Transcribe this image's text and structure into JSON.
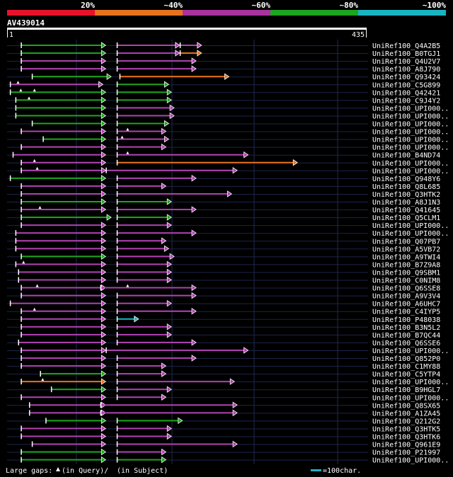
{
  "query": {
    "id": "AV439014",
    "start": "1",
    "end": "435",
    "length": 435
  },
  "identity_scale": [
    {
      "label": "20%",
      "color": "#e8112b"
    },
    {
      "label": "~40%",
      "color": "#e8731c"
    },
    {
      "label": "~60%",
      "color": "#a8329e"
    },
    {
      "label": "~80%",
      "color": "#1ea51e"
    },
    {
      "label": "~100%",
      "color": "#18b4c2"
    }
  ],
  "colors": {
    "green": "#1ea51e",
    "magenta": "#b042b0",
    "orange": "#e8731c",
    "cyan": "#18b4c2",
    "grid": "#202a55",
    "rowline": "#1c2448"
  },
  "hits": [
    {
      "name": "UniRef100_Q4A2B5",
      "segments": [
        [
          5,
          36,
          "green"
        ],
        [
          40,
          63,
          "magenta"
        ],
        [
          63,
          71,
          "magenta"
        ]
      ],
      "gaps": []
    },
    {
      "name": "UniRef100_B0TGJ1",
      "segments": [
        [
          5,
          36,
          "green"
        ],
        [
          40,
          63,
          "magenta"
        ],
        [
          63,
          71,
          "orange"
        ]
      ],
      "gaps": []
    },
    {
      "name": "UniRef100_Q4U2V7",
      "segments": [
        [
          5,
          36,
          "magenta"
        ],
        [
          40,
          69,
          "magenta"
        ]
      ],
      "gaps": []
    },
    {
      "name": "UniRef100_A8J790",
      "segments": [
        [
          5,
          36,
          "magenta"
        ],
        [
          40,
          69,
          "magenta"
        ]
      ],
      "gaps": []
    },
    {
      "name": "UniRef100_Q93424",
      "segments": [
        [
          9,
          38,
          "green"
        ],
        [
          41,
          81,
          "orange"
        ]
      ],
      "gaps": []
    },
    {
      "name": "UniRef100_C5G899",
      "segments": [
        [
          1,
          35,
          "magenta"
        ],
        [
          40,
          59,
          "green"
        ]
      ],
      "gaps": [
        4
      ]
    },
    {
      "name": "UniRef100_Q42421",
      "segments": [
        [
          1,
          36,
          "green"
        ],
        [
          40,
          60,
          "green"
        ]
      ],
      "gaps": [
        5,
        10
      ]
    },
    {
      "name": "UniRef100_C9J4Y2",
      "segments": [
        [
          3,
          36,
          "green"
        ],
        [
          40,
          60,
          "green"
        ]
      ],
      "gaps": [
        8
      ]
    },
    {
      "name": "UniRef100_UPI000..",
      "segments": [
        [
          3,
          36,
          "green"
        ],
        [
          40,
          61,
          "magenta"
        ]
      ],
      "gaps": []
    },
    {
      "name": "UniRef100_UPI000..",
      "segments": [
        [
          3,
          36,
          "green"
        ],
        [
          40,
          61,
          "magenta"
        ]
      ],
      "gaps": []
    },
    {
      "name": "UniRef100_UPI000..",
      "segments": [
        [
          9,
          36,
          "green"
        ],
        [
          40,
          59,
          "green"
        ]
      ],
      "gaps": []
    },
    {
      "name": "UniRef100_UPI000..",
      "segments": [
        [
          5,
          36,
          "magenta"
        ],
        [
          40,
          58,
          "magenta"
        ]
      ],
      "gaps": [
        44
      ]
    },
    {
      "name": "UniRef100_UPI000..",
      "segments": [
        [
          13,
          36,
          "green"
        ],
        [
          40,
          59,
          "magenta"
        ]
      ],
      "gaps": [
        42
      ]
    },
    {
      "name": "UniRef100_UPI000..",
      "segments": [
        [
          5,
          36,
          "magenta"
        ],
        [
          40,
          58,
          "magenta"
        ]
      ],
      "gaps": []
    },
    {
      "name": "UniRef100_B4ND74",
      "segments": [
        [
          2,
          36,
          "magenta"
        ],
        [
          40,
          88,
          "magenta"
        ]
      ],
      "gaps": [
        44
      ]
    },
    {
      "name": "UniRef100_UPI000..",
      "segments": [
        [
          5,
          36,
          "magenta"
        ],
        [
          40,
          106,
          "orange"
        ]
      ],
      "gaps": [
        10
      ]
    },
    {
      "name": "UniRef100_UPI000..",
      "segments": [
        [
          5,
          36,
          "magenta"
        ],
        [
          36,
          84,
          "magenta"
        ]
      ],
      "gaps": [
        11
      ]
    },
    {
      "name": "UniRef100_Q948Y6",
      "segments": [
        [
          1,
          36,
          "green"
        ],
        [
          40,
          69,
          "magenta"
        ]
      ],
      "gaps": []
    },
    {
      "name": "UniRef100_Q8L685",
      "segments": [
        [
          5,
          36,
          "magenta"
        ],
        [
          40,
          58,
          "magenta"
        ]
      ],
      "gaps": []
    },
    {
      "name": "UniRef100_Q3HTK2",
      "segments": [
        [
          5,
          36,
          "magenta"
        ],
        [
          40,
          82,
          "magenta"
        ]
      ],
      "gaps": []
    },
    {
      "name": "UniRef100_A8J1N3",
      "segments": [
        [
          5,
          36,
          "green"
        ],
        [
          40,
          60,
          "green"
        ]
      ],
      "gaps": []
    },
    {
      "name": "UniRef100_Q41645",
      "segments": [
        [
          5,
          36,
          "magenta"
        ],
        [
          40,
          69,
          "magenta"
        ]
      ],
      "gaps": [
        12
      ]
    },
    {
      "name": "UniRef100_Q5CLM1",
      "segments": [
        [
          5,
          38,
          "green"
        ],
        [
          40,
          60,
          "green"
        ]
      ],
      "gaps": []
    },
    {
      "name": "UniRef100_UPI000..",
      "segments": [
        [
          5,
          36,
          "magenta"
        ],
        [
          40,
          60,
          "magenta"
        ]
      ],
      "gaps": []
    },
    {
      "name": "UniRef100_UPI000..",
      "segments": [
        [
          3,
          36,
          "magenta"
        ],
        [
          40,
          69,
          "magenta"
        ]
      ],
      "gaps": []
    },
    {
      "name": "UniRef100_Q07PB7",
      "segments": [
        [
          3,
          36,
          "magenta"
        ],
        [
          40,
          58,
          "magenta"
        ]
      ],
      "gaps": []
    },
    {
      "name": "UniRef100_A5VB72",
      "segments": [
        [
          3,
          36,
          "magenta"
        ],
        [
          40,
          59,
          "magenta"
        ]
      ],
      "gaps": []
    },
    {
      "name": "UniRef100_A9TWI4",
      "segments": [
        [
          5,
          36,
          "green"
        ],
        [
          40,
          61,
          "magenta"
        ]
      ],
      "gaps": []
    },
    {
      "name": "UniRef100_B7Z9A8",
      "segments": [
        [
          3,
          36,
          "magenta"
        ],
        [
          40,
          60,
          "magenta"
        ]
      ],
      "gaps": [
        6
      ]
    },
    {
      "name": "UniRef100_Q9SBM1",
      "segments": [
        [
          4,
          36,
          "magenta"
        ],
        [
          40,
          60,
          "magenta"
        ]
      ],
      "gaps": []
    },
    {
      "name": "UniRef100_C0NIM8",
      "segments": [
        [
          4,
          36,
          "magenta"
        ],
        [
          40,
          60,
          "magenta"
        ]
      ],
      "gaps": []
    },
    {
      "name": "UniRef100_Q6SSE8",
      "segments": [
        [
          5,
          36,
          "magenta"
        ],
        [
          34,
          69,
          "magenta"
        ]
      ],
      "gaps": [
        11,
        44
      ]
    },
    {
      "name": "UniRef100_A9V3V4",
      "segments": [
        [
          5,
          36,
          "magenta"
        ],
        [
          40,
          69,
          "magenta"
        ]
      ],
      "gaps": []
    },
    {
      "name": "UniRef100_A6UHC7",
      "segments": [
        [
          1,
          36,
          "magenta"
        ],
        [
          40,
          60,
          "magenta"
        ]
      ],
      "gaps": []
    },
    {
      "name": "UniRef100_C4IYP5",
      "segments": [
        [
          5,
          36,
          "magenta"
        ],
        [
          40,
          69,
          "magenta"
        ]
      ],
      "gaps": [
        10
      ]
    },
    {
      "name": "UniRef100_P48038",
      "segments": [
        [
          5,
          36,
          "magenta"
        ],
        [
          40,
          48,
          "cyan"
        ]
      ],
      "gaps": []
    },
    {
      "name": "UniRef100_B3N5L2",
      "segments": [
        [
          5,
          36,
          "magenta"
        ],
        [
          40,
          60,
          "magenta"
        ]
      ],
      "gaps": []
    },
    {
      "name": "UniRef100_B7QC44",
      "segments": [
        [
          5,
          36,
          "magenta"
        ],
        [
          40,
          60,
          "magenta"
        ]
      ],
      "gaps": []
    },
    {
      "name": "UniRef100_Q6SSE6",
      "segments": [
        [
          4,
          36,
          "magenta"
        ],
        [
          40,
          69,
          "magenta"
        ]
      ],
      "gaps": []
    },
    {
      "name": "UniRef100_UPI000..",
      "segments": [
        [
          5,
          36,
          "magenta"
        ],
        [
          36,
          88,
          "magenta"
        ]
      ],
      "gaps": []
    },
    {
      "name": "UniRef100_Q852P0",
      "segments": [
        [
          5,
          36,
          "magenta"
        ],
        [
          40,
          69,
          "magenta"
        ]
      ],
      "gaps": []
    },
    {
      "name": "UniRef100_C1MY88",
      "segments": [
        [
          5,
          36,
          "magenta"
        ],
        [
          40,
          58,
          "magenta"
        ]
      ],
      "gaps": []
    },
    {
      "name": "UniRef100_C5YTP4",
      "segments": [
        [
          12,
          36,
          "green"
        ],
        [
          40,
          58,
          "magenta"
        ]
      ],
      "gaps": []
    },
    {
      "name": "UniRef100_UPI000..",
      "segments": [
        [
          5,
          36,
          "orange"
        ],
        [
          40,
          83,
          "magenta"
        ]
      ],
      "gaps": [
        13
      ]
    },
    {
      "name": "UniRef100_B9HGL7",
      "segments": [
        [
          16,
          36,
          "green"
        ],
        [
          40,
          60,
          "magenta"
        ]
      ],
      "gaps": []
    },
    {
      "name": "UniRef100_UPI000..",
      "segments": [
        [
          5,
          36,
          "magenta"
        ],
        [
          40,
          58,
          "magenta"
        ]
      ],
      "gaps": []
    },
    {
      "name": "UniRef100_Q8SX65",
      "segments": [
        [
          8,
          36,
          "magenta"
        ],
        [
          34,
          84,
          "magenta"
        ]
      ],
      "gaps": []
    },
    {
      "name": "UniRef100_A1ZA45",
      "segments": [
        [
          8,
          36,
          "magenta"
        ],
        [
          34,
          84,
          "magenta"
        ]
      ],
      "gaps": []
    },
    {
      "name": "UniRef100_Q212G2",
      "segments": [
        [
          14,
          36,
          "green"
        ],
        [
          40,
          64,
          "green"
        ]
      ],
      "gaps": []
    },
    {
      "name": "UniRef100_Q3HTK5",
      "segments": [
        [
          5,
          36,
          "magenta"
        ],
        [
          40,
          60,
          "magenta"
        ]
      ],
      "gaps": []
    },
    {
      "name": "UniRef100_Q3HTK6",
      "segments": [
        [
          5,
          36,
          "magenta"
        ],
        [
          40,
          60,
          "magenta"
        ]
      ],
      "gaps": []
    },
    {
      "name": "UniRef100_Q961E9",
      "segments": [
        [
          9,
          36,
          "magenta"
        ],
        [
          40,
          84,
          "magenta"
        ]
      ],
      "gaps": []
    },
    {
      "name": "UniRef100_P21997",
      "segments": [
        [
          5,
          36,
          "green"
        ],
        [
          40,
          58,
          "magenta"
        ]
      ],
      "gaps": []
    },
    {
      "name": "UniRef100_UPI000..",
      "segments": [
        [
          5,
          36,
          "green"
        ],
        [
          40,
          58,
          "green"
        ]
      ],
      "gaps": []
    }
  ],
  "footer": {
    "legend_prefix": "Large gaps:",
    "legend_query": "(in Query)/",
    "legend_subject": "(in Subject)",
    "scale_text": "=100char."
  }
}
